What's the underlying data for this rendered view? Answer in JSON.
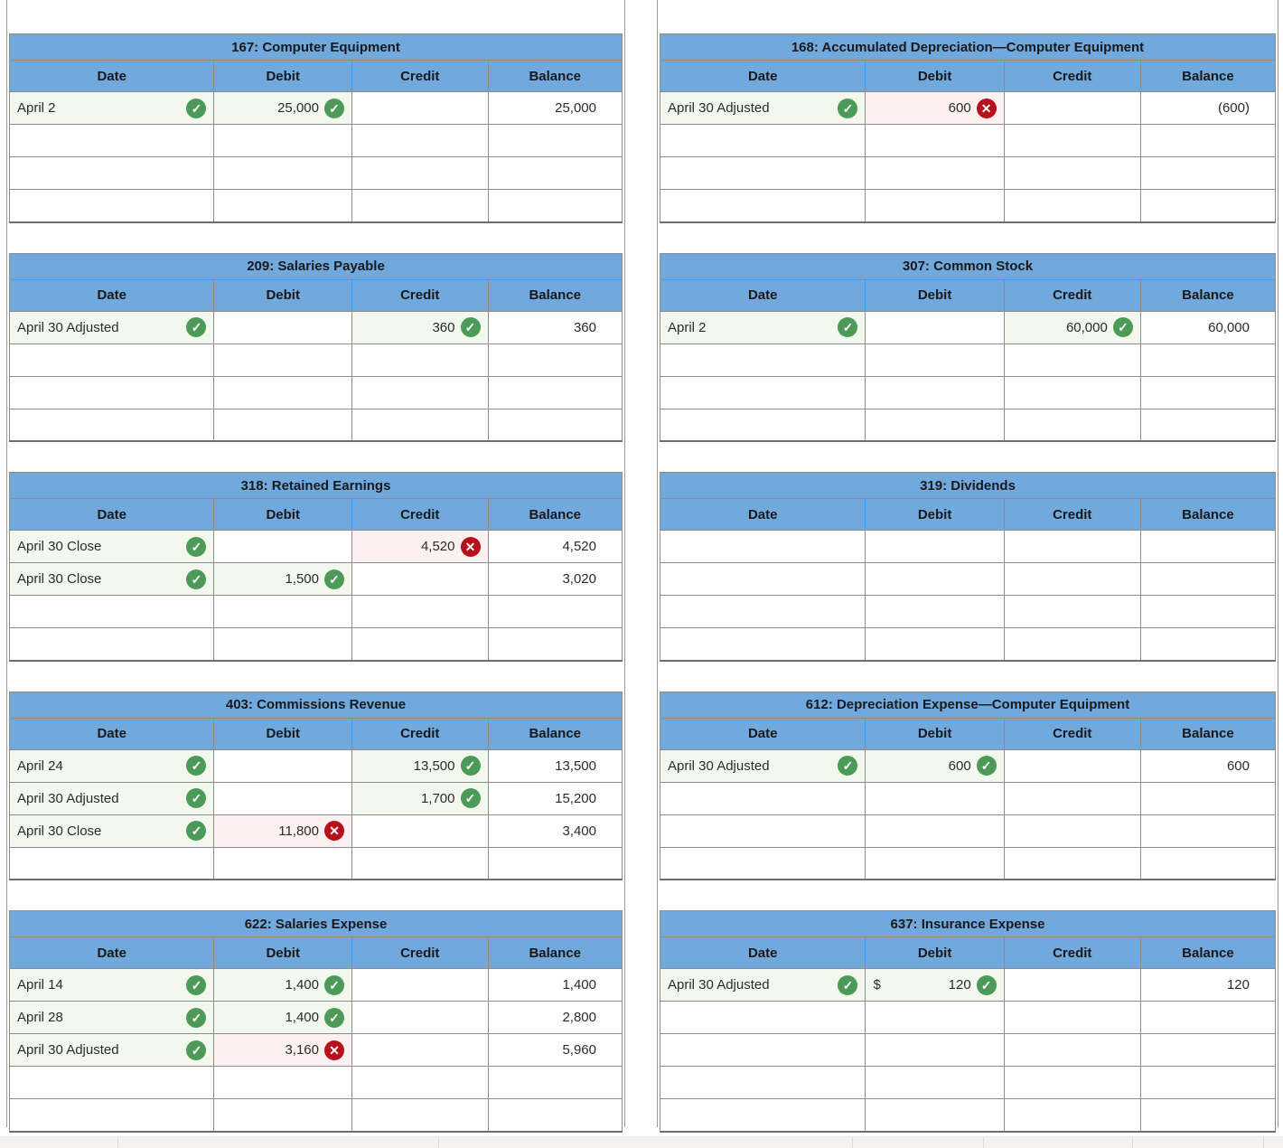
{
  "colors": {
    "header_blue": "#72a9dc",
    "check_green": "#4d9a58",
    "error_red": "#b70f1b",
    "correct_cell_bg": "#f2f8ee",
    "error_cell_bg": "#fdf0f1",
    "grid_border": "#8c8c8c"
  },
  "glyphs": {
    "check": "✓",
    "x": "✕"
  },
  "column_headers": [
    "Date",
    "Debit",
    "Credit",
    "Balance"
  ],
  "accounts": [
    {
      "id": "167",
      "title": "167: Computer Equipment",
      "column": "left",
      "rows": [
        {
          "date": "April 2",
          "date_icon": "check",
          "debit": "25,000",
          "debit_icon": "check",
          "credit": "",
          "credit_icon": "",
          "balance": "25,000"
        }
      ],
      "empty_rows": 3
    },
    {
      "id": "209",
      "title": "209: Salaries Payable",
      "column": "left",
      "rows": [
        {
          "date": "April 30 Adjusted",
          "date_icon": "check",
          "debit": "",
          "debit_icon": "",
          "credit": "360",
          "credit_icon": "check",
          "balance": "360"
        }
      ],
      "empty_rows": 3
    },
    {
      "id": "318",
      "title": "318: Retained Earnings",
      "column": "left",
      "rows": [
        {
          "date": "April 30 Close",
          "date_icon": "check",
          "debit": "",
          "debit_icon": "",
          "credit": "4,520",
          "credit_icon": "x",
          "balance": "4,520"
        },
        {
          "date": "April 30 Close",
          "date_icon": "check",
          "debit": "1,500",
          "debit_icon": "check",
          "credit": "",
          "credit_icon": "",
          "balance": "3,020"
        }
      ],
      "empty_rows": 2
    },
    {
      "id": "403",
      "title": "403: Commissions Revenue",
      "column": "left",
      "rows": [
        {
          "date": "April 24",
          "date_icon": "check",
          "debit": "",
          "debit_icon": "",
          "credit": "13,500",
          "credit_icon": "check",
          "balance": "13,500"
        },
        {
          "date": "April 30 Adjusted",
          "date_icon": "check",
          "debit": "",
          "debit_icon": "",
          "credit": "1,700",
          "credit_icon": "check",
          "balance": "15,200"
        },
        {
          "date": "April 30 Close",
          "date_icon": "check",
          "debit": "11,800",
          "debit_icon": "x",
          "credit": "",
          "credit_icon": "",
          "balance": "3,400"
        }
      ],
      "empty_rows": 1
    },
    {
      "id": "622",
      "title": "622: Salaries Expense",
      "column": "left",
      "rows": [
        {
          "date": "April 14",
          "date_icon": "check",
          "debit": "1,400",
          "debit_icon": "check",
          "credit": "",
          "credit_icon": "",
          "balance": "1,400"
        },
        {
          "date": "April 28",
          "date_icon": "check",
          "debit": "1,400",
          "debit_icon": "check",
          "credit": "",
          "credit_icon": "",
          "balance": "2,800"
        },
        {
          "date": "April 30 Adjusted",
          "date_icon": "check",
          "debit": "3,160",
          "debit_icon": "x",
          "credit": "",
          "credit_icon": "",
          "balance": "5,960"
        }
      ],
      "empty_rows": 2
    },
    {
      "id": "168",
      "title": "168: Accumulated Depreciation—Computer Equipment",
      "column": "right",
      "rows": [
        {
          "date": "April 30 Adjusted",
          "date_icon": "check",
          "debit": "600",
          "debit_icon": "x",
          "credit": "",
          "credit_icon": "",
          "balance": "(600)"
        }
      ],
      "empty_rows": 3
    },
    {
      "id": "307",
      "title": "307: Common Stock",
      "column": "right",
      "rows": [
        {
          "date": "April 2",
          "date_icon": "check",
          "debit": "",
          "debit_icon": "",
          "credit": "60,000",
          "credit_icon": "check",
          "balance": "60,000"
        }
      ],
      "empty_rows": 3
    },
    {
      "id": "319",
      "title": "319: Dividends",
      "column": "right",
      "rows": [],
      "empty_rows": 4
    },
    {
      "id": "612",
      "title": "612: Depreciation Expense—Computer Equipment",
      "column": "right",
      "rows": [
        {
          "date": "April 30 Adjusted",
          "date_icon": "check",
          "debit": "600",
          "debit_icon": "check",
          "credit": "",
          "credit_icon": "",
          "balance": "600"
        }
      ],
      "empty_rows": 3
    },
    {
      "id": "637",
      "title": "637: Insurance Expense",
      "column": "right",
      "rows": [
        {
          "date": "April 30 Adjusted",
          "date_icon": "check",
          "debit_prefix": "$",
          "debit": "120",
          "debit_icon": "check",
          "credit": "",
          "credit_icon": "",
          "balance": "120"
        }
      ],
      "empty_rows": 4
    }
  ]
}
